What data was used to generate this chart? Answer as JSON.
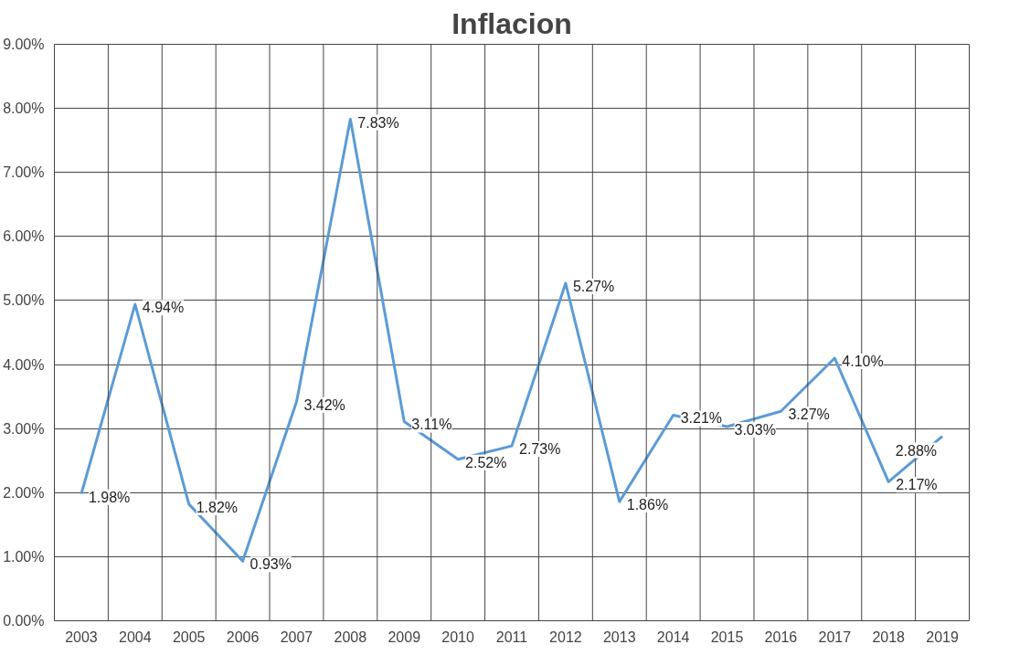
{
  "chart_data": {
    "type": "line",
    "title": "Inflacion",
    "categories": [
      "2003",
      "2004",
      "2005",
      "2006",
      "2007",
      "2008",
      "2009",
      "2010",
      "2011",
      "2012",
      "2013",
      "2014",
      "2015",
      "2016",
      "2017",
      "2018",
      "2019"
    ],
    "series": [
      {
        "color": "#5b9bd5",
        "values": [
          1.98,
          4.94,
          1.82,
          0.93,
          3.42,
          7.83,
          3.11,
          2.52,
          2.73,
          5.27,
          1.86,
          3.21,
          3.03,
          3.27,
          4.1,
          2.17,
          2.88
        ]
      }
    ],
    "value_labels": [
      "1.98%",
      "4.94%",
      "1.82%",
      "0.93%",
      "3.42%",
      "7.83%",
      "3.11%",
      "2.52%",
      "2.73%",
      "5.27%",
      "1.86%",
      "3.21%",
      "3.03%",
      "3.27%",
      "4.10%",
      "2.17%",
      "2.88%"
    ],
    "ylim": [
      0,
      9
    ],
    "yticks": [
      {
        "value": 0,
        "label": "0.00%"
      },
      {
        "value": 1,
        "label": "1.00%"
      },
      {
        "value": 2,
        "label": "2.00%"
      },
      {
        "value": 3,
        "label": "3.00%"
      },
      {
        "value": 4,
        "label": "4.00%"
      },
      {
        "value": 5,
        "label": "5.00%"
      },
      {
        "value": 6,
        "label": "6.00%"
      },
      {
        "value": 7,
        "label": "7.00%"
      },
      {
        "value": 8,
        "label": "8.00%"
      },
      {
        "value": 9,
        "label": "9.00%"
      }
    ],
    "grid": true,
    "marker": "none",
    "line_style": "solid"
  }
}
